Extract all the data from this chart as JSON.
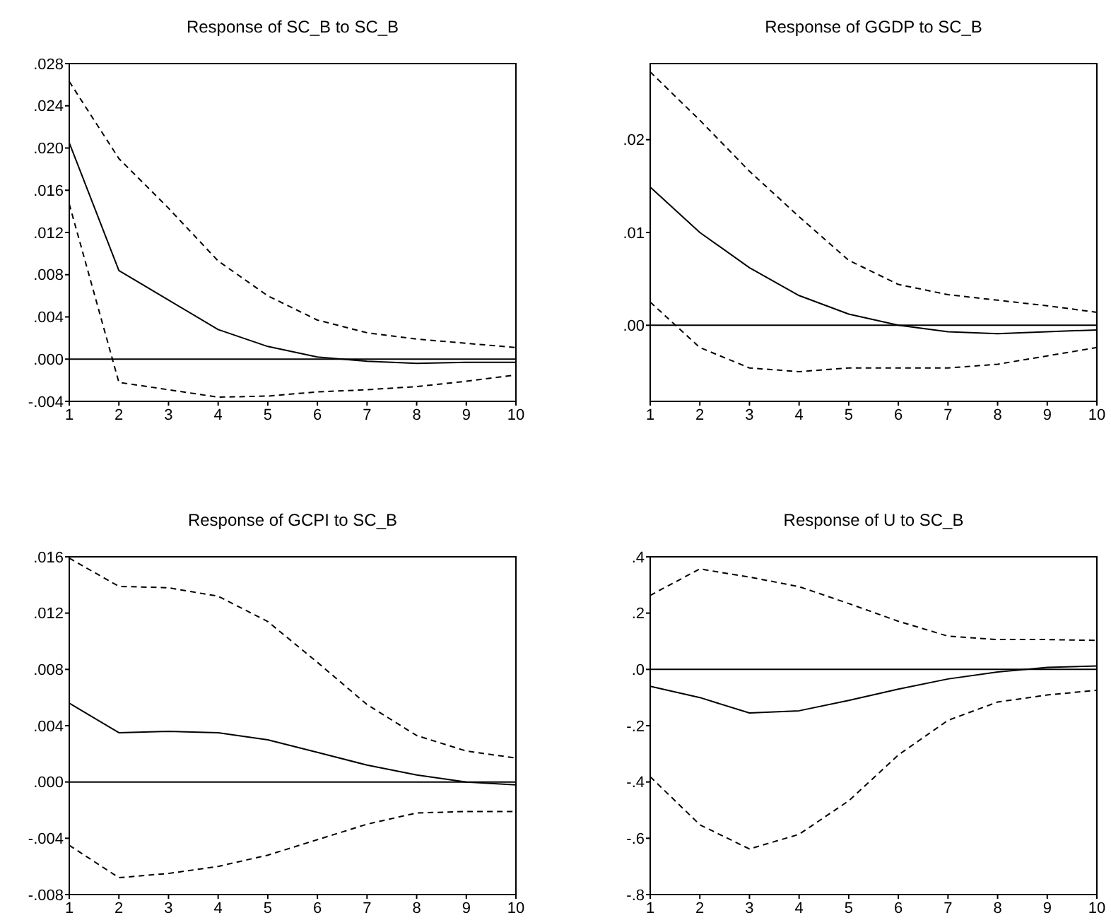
{
  "chart_data": [
    {
      "type": "line",
      "title": "Response of SC_B to SC_B",
      "x": [
        1,
        2,
        3,
        4,
        5,
        6,
        7,
        8,
        9,
        10
      ],
      "xlim": [
        1,
        10
      ],
      "xticks": [
        1,
        2,
        3,
        4,
        5,
        6,
        7,
        8,
        9,
        10
      ],
      "ylim": [
        -0.004,
        0.028
      ],
      "yticks": [
        {
          "value": -0.004,
          "label": "-.004"
        },
        {
          "value": 0,
          "label": ".000"
        },
        {
          "value": 0.004,
          "label": ".004"
        },
        {
          "value": 0.008,
          "label": ".008"
        },
        {
          "value": 0.012,
          "label": ".012"
        },
        {
          "value": 0.016,
          "label": ".016"
        },
        {
          "value": 0.02,
          "label": ".020"
        },
        {
          "value": 0.024,
          "label": ".024"
        },
        {
          "value": 0.028,
          "label": ".028"
        }
      ],
      "ref_lines": [
        {
          "axis": "y",
          "value": 0,
          "color": "#000000"
        }
      ],
      "series": [
        {
          "color": "#000000",
          "line_style": "solid",
          "values": [
            0.0205,
            0.0084,
            0.0056,
            0.0028,
            0.0012,
            0.0002,
            -0.0002,
            -0.0004,
            -0.0003,
            -0.0003
          ]
        },
        {
          "color": "#000000",
          "line_style": "dashed",
          "values": [
            0.0263,
            0.019,
            0.0143,
            0.0093,
            0.006,
            0.0037,
            0.0025,
            0.0019,
            0.0015,
            0.0011
          ]
        },
        {
          "color": "#000000",
          "line_style": "dashed",
          "values": [
            0.0147,
            -0.0022,
            -0.0029,
            -0.0036,
            -0.0035,
            -0.0031,
            -0.0029,
            -0.0026,
            -0.0021,
            -0.0015
          ]
        }
      ]
    },
    {
      "type": "line",
      "title": "Response of GGDP to SC_B",
      "x": [
        1,
        2,
        3,
        4,
        5,
        6,
        7,
        8,
        9,
        10
      ],
      "xlim": [
        1,
        10
      ],
      "xticks": [
        1,
        2,
        3,
        4,
        5,
        6,
        7,
        8,
        9,
        10
      ],
      "ylim": [
        -0.0082,
        0.0282
      ],
      "yticks": [
        {
          "value": 0,
          "label": ".00"
        },
        {
          "value": 0.01,
          "label": ".01"
        },
        {
          "value": 0.02,
          "label": ".02"
        }
      ],
      "ref_lines": [
        {
          "axis": "y",
          "value": 0,
          "color": "#000000"
        }
      ],
      "series": [
        {
          "color": "#000000",
          "line_style": "solid",
          "values": [
            0.0149,
            0.01,
            0.0062,
            0.0032,
            0.0012,
            0,
            -0.0007,
            -0.0009,
            -0.0007,
            -0.0005
          ]
        },
        {
          "color": "#000000",
          "line_style": "dashed",
          "values": [
            0.0273,
            0.0221,
            0.0166,
            0.0117,
            0.007,
            0.0044,
            0.0033,
            0.0027,
            0.0021,
            0.0014
          ]
        },
        {
          "color": "#000000",
          "line_style": "dashed",
          "values": [
            0.0025,
            -0.0024,
            -0.0046,
            -0.005,
            -0.0046,
            -0.0046,
            -0.0046,
            -0.0042,
            -0.0033,
            -0.0024
          ]
        }
      ]
    },
    {
      "type": "line",
      "title": "Response of GCPI to SC_B",
      "x": [
        1,
        2,
        3,
        4,
        5,
        6,
        7,
        8,
        9,
        10
      ],
      "xlim": [
        1,
        10
      ],
      "xticks": [
        1,
        2,
        3,
        4,
        5,
        6,
        7,
        8,
        9,
        10
      ],
      "ylim": [
        -0.008,
        0.016
      ],
      "yticks": [
        {
          "value": -0.008,
          "label": "-.008"
        },
        {
          "value": -0.004,
          "label": "-.004"
        },
        {
          "value": 0,
          "label": ".000"
        },
        {
          "value": 0.004,
          "label": ".004"
        },
        {
          "value": 0.008,
          "label": ".008"
        },
        {
          "value": 0.012,
          "label": ".012"
        },
        {
          "value": 0.016,
          "label": ".016"
        }
      ],
      "ref_lines": [
        {
          "axis": "y",
          "value": 0,
          "color": "#000000"
        }
      ],
      "series": [
        {
          "color": "#000000",
          "line_style": "solid",
          "values": [
            0.0056,
            0.0035,
            0.0036,
            0.0035,
            0.003,
            0.0021,
            0.0012,
            0.0005,
            0,
            -0.0002
          ]
        },
        {
          "color": "#000000",
          "line_style": "dashed",
          "values": [
            0.0159,
            0.0139,
            0.0138,
            0.0132,
            0.0114,
            0.0085,
            0.0055,
            0.0033,
            0.0022,
            0.0017
          ]
        },
        {
          "color": "#000000",
          "line_style": "dashed",
          "values": [
            -0.0045,
            -0.0068,
            -0.0065,
            -0.006,
            -0.0052,
            -0.0041,
            -0.003,
            -0.0022,
            -0.0021,
            -0.0021
          ]
        }
      ]
    },
    {
      "type": "line",
      "title": "Response of U to SC_B",
      "x": [
        1,
        2,
        3,
        4,
        5,
        6,
        7,
        8,
        9,
        10
      ],
      "xlim": [
        1,
        10
      ],
      "xticks": [
        1,
        2,
        3,
        4,
        5,
        6,
        7,
        8,
        9,
        10
      ],
      "ylim": [
        -0.8,
        0.4
      ],
      "yticks": [
        {
          "value": -0.8,
          "label": "-.8"
        },
        {
          "value": -0.6,
          "label": "-.6"
        },
        {
          "value": -0.4,
          "label": "-.4"
        },
        {
          "value": -0.2,
          "label": "-.2"
        },
        {
          "value": 0,
          "label": ".0"
        },
        {
          "value": 0.2,
          "label": ".2"
        },
        {
          "value": 0.4,
          "label": ".4"
        }
      ],
      "ref_lines": [
        {
          "axis": "y",
          "value": 0,
          "color": "#000000"
        }
      ],
      "series": [
        {
          "color": "#000000",
          "line_style": "solid",
          "values": [
            -0.06,
            -0.1,
            -0.155,
            -0.147,
            -0.11,
            -0.07,
            -0.034,
            -0.009,
            0.007,
            0.012
          ]
        },
        {
          "color": "#000000",
          "line_style": "dashed",
          "values": [
            0.263,
            0.357,
            0.328,
            0.294,
            0.234,
            0.171,
            0.118,
            0.106,
            0.106,
            0.103
          ]
        },
        {
          "color": "#000000",
          "line_style": "dashed",
          "values": [
            -0.381,
            -0.552,
            -0.638,
            -0.586,
            -0.467,
            -0.304,
            -0.181,
            -0.116,
            -0.091,
            -0.074
          ]
        }
      ]
    }
  ]
}
